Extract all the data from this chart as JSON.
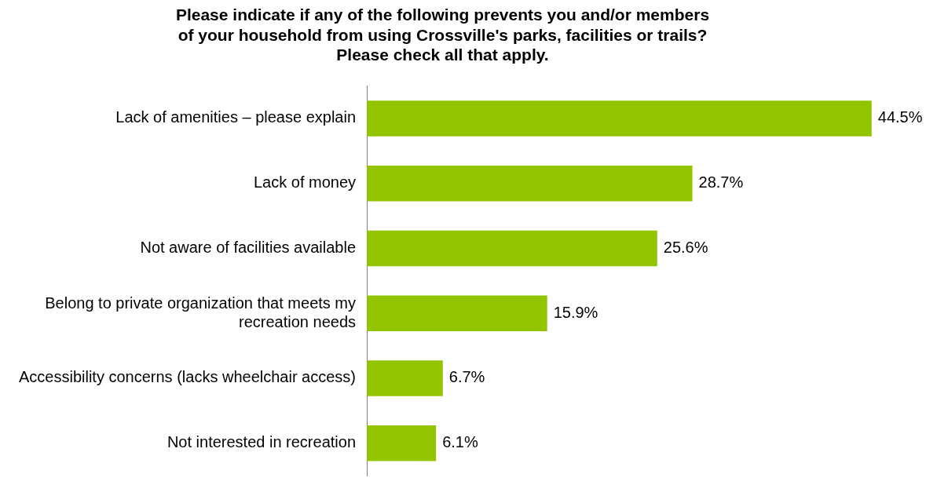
{
  "chart_data": {
    "type": "bar",
    "orientation": "horizontal",
    "title": "Please indicate if any of the following prevents you and/or members\nof your household from using Crossville's parks, facilities or trails?\nPlease check all that apply.",
    "categories": [
      "Lack of amenities – please explain",
      "Lack of money",
      "Not aware of facilities available",
      "Belong to private organization that meets my\nrecreation needs",
      "Accessibility concerns (lacks wheelchair access)",
      "Not interested in recreation"
    ],
    "values": [
      44.5,
      28.7,
      25.6,
      15.9,
      6.7,
      6.1
    ],
    "value_labels": [
      "44.5%",
      "28.7%",
      "25.6%",
      "15.9%",
      "6.7%",
      "6.1%"
    ],
    "color": "#92c500",
    "legend": false
  }
}
